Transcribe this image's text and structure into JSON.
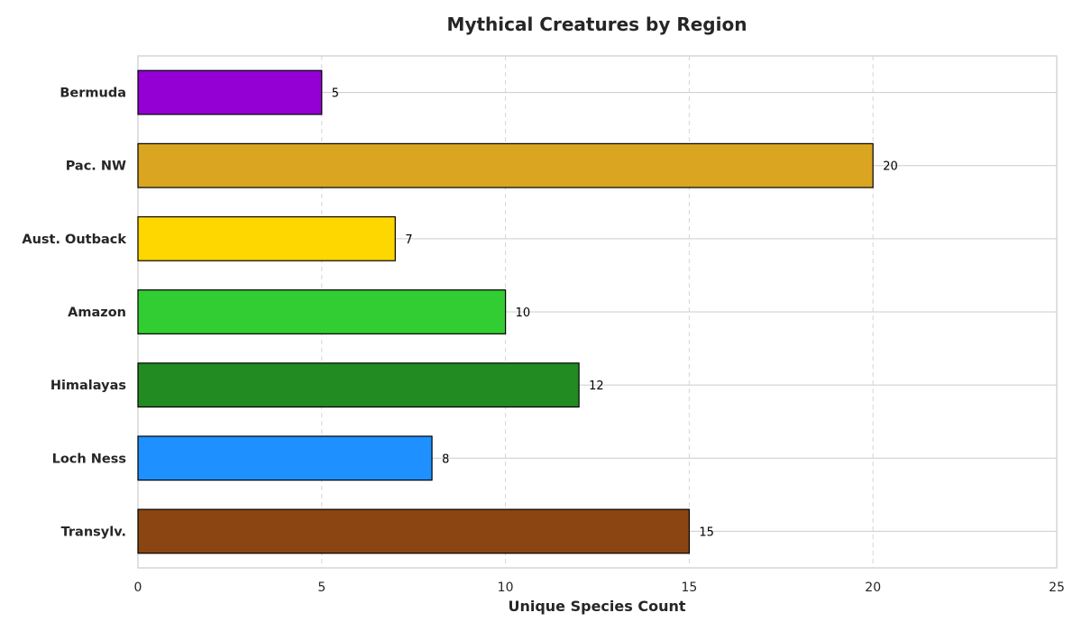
{
  "chart_data": {
    "type": "bar",
    "orientation": "horizontal",
    "title": "Mythical Creatures by Region",
    "xlabel": "Unique Species Count",
    "ylabel": "",
    "categories": [
      "Transylv.",
      "Loch Ness",
      "Himalayas",
      "Amazon",
      "Aust. Outback",
      "Pac. NW",
      "Bermuda"
    ],
    "values": [
      15,
      8,
      12,
      10,
      7,
      20,
      5
    ],
    "colors": [
      "#8B4513",
      "#1E90FF",
      "#228B22",
      "#32CD32",
      "#FFD700",
      "#DAA520",
      "#9400D3"
    ],
    "xlim": [
      0,
      25
    ],
    "xticks": [
      0,
      5,
      10,
      15,
      20,
      25
    ],
    "grid": true,
    "data_labels": true,
    "legend": "none"
  }
}
